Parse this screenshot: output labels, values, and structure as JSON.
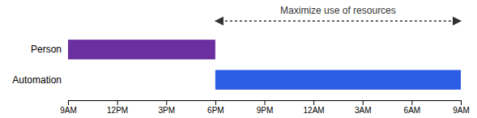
{
  "chart_data": {
    "type": "bar",
    "orientation": "horizontal",
    "categories": [
      "Person",
      "Automation"
    ],
    "starts": [
      9,
      18
    ],
    "ends": [
      18,
      33
    ],
    "colors": [
      "#6B2FA0",
      "#2B5CE6"
    ],
    "xlim": [
      9,
      33
    ],
    "xticks": [
      {
        "value": 9,
        "label": "9AM"
      },
      {
        "value": 12,
        "label": "12PM"
      },
      {
        "value": 15,
        "label": "3PM"
      },
      {
        "value": 18,
        "label": "6PM"
      },
      {
        "value": 21,
        "label": "9PM"
      },
      {
        "value": 24,
        "label": "12AM"
      },
      {
        "value": 27,
        "label": "3AM"
      },
      {
        "value": 30,
        "label": "6AM"
      },
      {
        "value": 33,
        "label": "9AM"
      }
    ],
    "grid": false,
    "annotations": [
      {
        "text": "Maximize use of resources",
        "x_start": 18,
        "x_end": 33,
        "color": "#303030"
      }
    ]
  }
}
